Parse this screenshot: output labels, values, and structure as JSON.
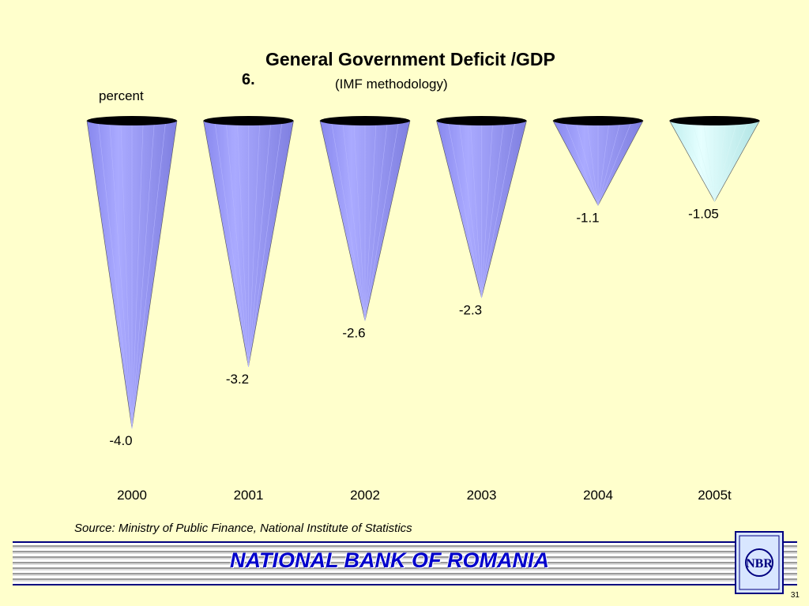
{
  "slide": {
    "number": "6.",
    "title": "General Government Deficit /GDP",
    "subtitle": "(IMF methodology)",
    "unit": "percent",
    "source": "Source: Ministry of Public Finance, National Institute of Statistics",
    "footer": "NATIONAL BANK OF ROMANIA",
    "logo_text": "NBR",
    "page_number": "31"
  },
  "chart_data": {
    "type": "bar",
    "title": "General Government Deficit /GDP",
    "subtitle": "(IMF methodology)",
    "ylabel": "percent",
    "categories": [
      "2000",
      "2001",
      "2002",
      "2003",
      "2004",
      "2005t"
    ],
    "values": [
      -4.0,
      -3.2,
      -2.6,
      -2.3,
      -1.1,
      -1.05
    ],
    "labels": [
      "-4.0",
      "-3.2",
      "-2.6",
      "-2.3",
      "-1.1",
      "-1.05"
    ],
    "ylim": [
      -4.0,
      0
    ],
    "grid": false,
    "bar_shape": "inverted cone",
    "colors": {
      "primary": "#9999ff",
      "highlight": "#ccffff",
      "top_ellipse": "#000000"
    },
    "highlight_index": 5
  }
}
